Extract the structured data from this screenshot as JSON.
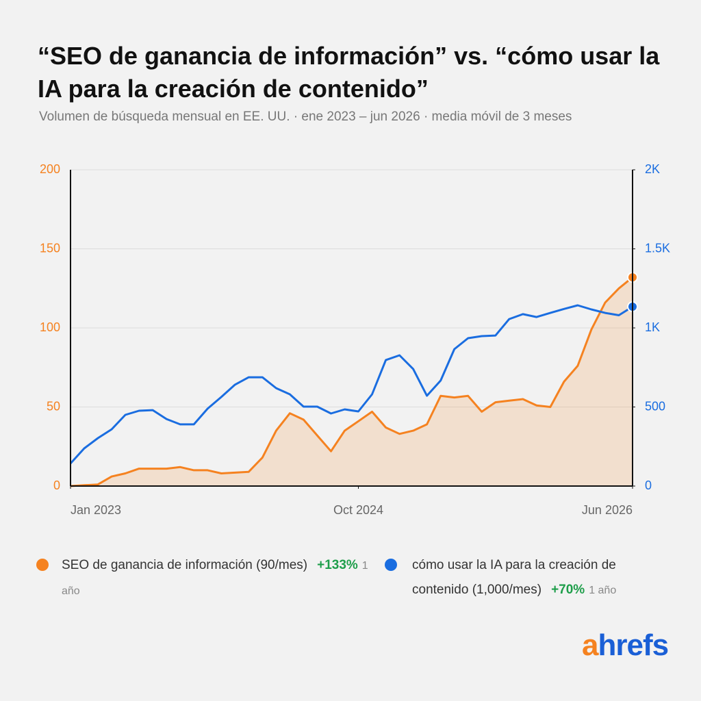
{
  "chart_data": {
    "type": "line",
    "title": "“SEO de ganancia de información” vs. “cómo usar la IA para la creación de contenido”",
    "subtitle": "Volumen de búsqueda mensual en EE. UU. · ene 2023 – jun 2026 · media móvil de 3 meses",
    "x": [
      "2023-01",
      "2023-02",
      "2023-03",
      "2023-04",
      "2023-05",
      "2023-06",
      "2023-07",
      "2023-08",
      "2023-09",
      "2023-10",
      "2023-11",
      "2023-12",
      "2024-01",
      "2024-02",
      "2024-03",
      "2024-04",
      "2024-05",
      "2024-06",
      "2024-07",
      "2024-08",
      "2024-09",
      "2024-10",
      "2024-11",
      "2024-12",
      "2025-01",
      "2025-02",
      "2025-03",
      "2025-04",
      "2025-05",
      "2025-06",
      "2025-07",
      "2025-08",
      "2025-09",
      "2025-10",
      "2025-11",
      "2025-12",
      "2026-01",
      "2026-02",
      "2026-03",
      "2026-04",
      "2026-05",
      "2026-06"
    ],
    "xticks": [
      {
        "value": "2023-01",
        "label": "Jan 2023"
      },
      {
        "value": "2024-10",
        "label": "Oct 2024"
      },
      {
        "value": "2026-06",
        "label": "Jun 2026"
      }
    ],
    "ylim": [
      0,
      200
    ],
    "yticks": [
      0,
      50,
      100,
      150,
      200
    ],
    "y2lim": [
      0,
      2000
    ],
    "y2ticks": [
      0,
      500,
      {
        "value": 1000,
        "label": "1K"
      },
      {
        "value": 1500,
        "label": "1.5K"
      },
      {
        "value": 2000,
        "label": "2K"
      }
    ],
    "grid": true,
    "series": [
      {
        "name": "SEO de ganancia de información",
        "color": "#f58220",
        "area": true,
        "volume": "(90/mes)",
        "change": "+133%",
        "period": "1 año",
        "values": [
          0,
          0.5,
          1,
          6,
          8,
          11,
          11,
          11,
          12,
          10,
          10,
          8,
          8.5,
          9,
          18,
          35,
          46,
          42,
          32,
          22,
          35,
          41,
          47,
          37,
          33,
          35,
          39,
          57,
          56,
          57,
          47,
          53,
          54,
          55,
          51,
          50,
          66,
          76,
          99,
          116,
          125,
          132
        ]
      },
      {
        "name": "cómo usar la IA para la creación de contenido",
        "color": "#1a6de0",
        "axis": "y2",
        "volume": "(1,000/mes)",
        "change": "+70%",
        "period": "1 año",
        "values": [
          143,
          238,
          303,
          359,
          450,
          476,
          480,
          424,
          390,
          390,
          489,
          563,
          641,
          688,
          688,
          619,
          580,
          502,
          502,
          459,
          485,
          472,
          580,
          797,
          827,
          740,
          571,
          667,
          866,
          935,
          948,
          952,
          1056,
          1087,
          1069,
          1095,
          1120,
          1143,
          1117,
          1095,
          1080,
          1134
        ]
      }
    ],
    "brand": "ahrefs"
  }
}
